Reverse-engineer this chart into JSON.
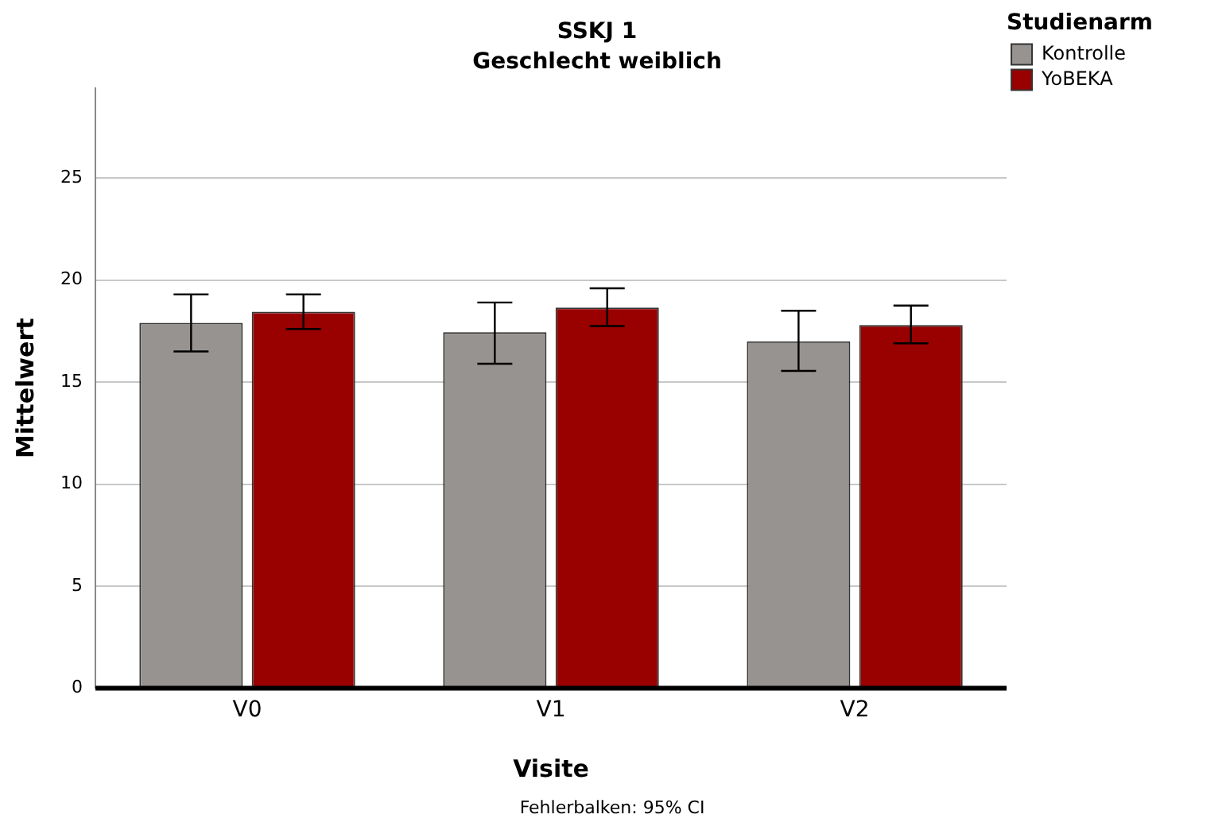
{
  "chart_data": {
    "type": "bar",
    "title": "SSKJ 1",
    "subtitle": "Geschlecht weiblich",
    "xlabel": "Visite",
    "ylabel": "Mittelwert",
    "legend_title": "Studienarm",
    "categories": [
      "V0",
      "V1",
      "V2"
    ],
    "series": [
      {
        "name": "Kontrolle",
        "color": "#979391",
        "values": [
          17.9,
          17.45,
          17.0
        ],
        "errors": [
          [
            16.5,
            19.3
          ],
          [
            15.9,
            18.9
          ],
          [
            15.55,
            18.5
          ]
        ]
      },
      {
        "name": "YoBEKA",
        "color": "#990000",
        "values": [
          18.45,
          18.65,
          17.8
        ],
        "errors": [
          [
            17.6,
            19.3
          ],
          [
            17.75,
            19.6
          ],
          [
            16.9,
            18.75
          ]
        ]
      }
    ],
    "ylim": [
      0,
      29.4
    ],
    "yticks": [
      0,
      5,
      10,
      15,
      20,
      25
    ],
    "grid": "y",
    "legend": "top right",
    "annotations": [
      "Fehlerbalken: 95% CI"
    ]
  }
}
